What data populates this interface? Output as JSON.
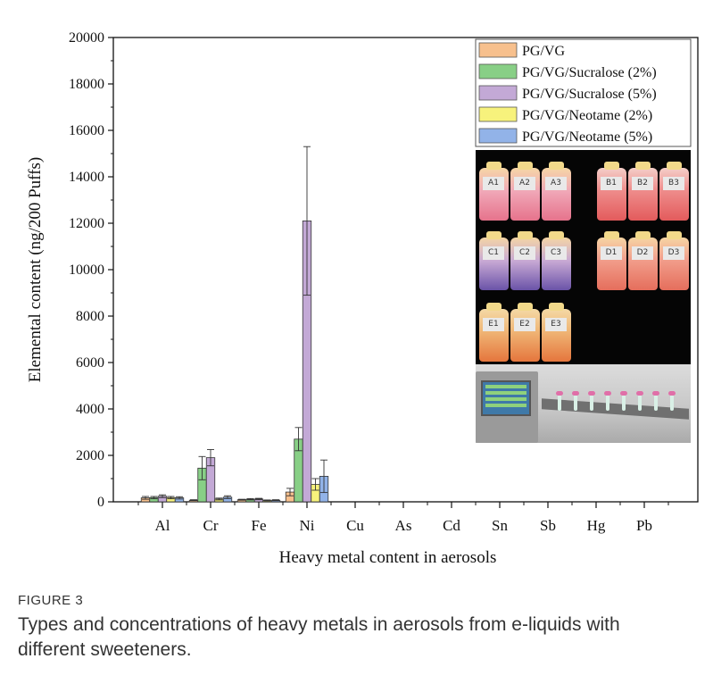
{
  "chart_data": {
    "type": "bar",
    "xlabel": "Heavy metal content in aerosols",
    "ylabel": "Elemental content (ng/200 Puffs)",
    "ylim": [
      0,
      20000
    ],
    "yticks": [
      0,
      2000,
      4000,
      6000,
      8000,
      10000,
      12000,
      14000,
      16000,
      18000,
      20000
    ],
    "categories": [
      "Al",
      "Cr",
      "Fe",
      "Ni",
      "Cu",
      "As",
      "Cd",
      "Sn",
      "Sb",
      "Hg",
      "Pb"
    ],
    "legend_position": "top-right",
    "grid": false,
    "error_bars": true,
    "series": [
      {
        "name": "PG/VG",
        "color": "#f7c08d",
        "values": [
          170,
          70,
          90,
          420,
          0,
          0,
          0,
          0,
          0,
          0,
          0
        ],
        "errors": [
          60,
          20,
          20,
          160,
          0,
          0,
          0,
          0,
          0,
          0,
          0
        ]
      },
      {
        "name": "PG/VG/Sucralose (2%)",
        "color": "#88cf86",
        "values": [
          180,
          1450,
          110,
          2700,
          0,
          0,
          0,
          0,
          0,
          0,
          0
        ],
        "errors": [
          50,
          500,
          30,
          500,
          0,
          0,
          0,
          0,
          0,
          0,
          0
        ]
      },
      {
        "name": "PG/VG/Sucralose (5%)",
        "color": "#c3a9d6",
        "values": [
          240,
          1900,
          120,
          12100,
          0,
          0,
          0,
          0,
          0,
          0,
          0
        ],
        "errors": [
          60,
          350,
          30,
          3200,
          0,
          0,
          0,
          0,
          0,
          0,
          0
        ]
      },
      {
        "name": "PG/VG/Neotame (2%)",
        "color": "#f7f27c",
        "values": [
          180,
          120,
          60,
          750,
          0,
          0,
          0,
          0,
          0,
          0,
          0
        ],
        "errors": [
          50,
          40,
          20,
          250,
          0,
          0,
          0,
          0,
          0,
          0,
          0
        ]
      },
      {
        "name": "PG/VG/Neotame (5%)",
        "color": "#92b3e8",
        "values": [
          170,
          200,
          70,
          1100,
          0,
          0,
          0,
          0,
          0,
          0,
          0
        ],
        "errors": [
          50,
          60,
          20,
          700,
          0,
          0,
          0,
          0,
          0,
          0,
          0
        ]
      }
    ]
  },
  "photo_labels": [
    "A1",
    "A2",
    "A3",
    "B1",
    "B2",
    "B3",
    "C1",
    "C2",
    "C3",
    "D1",
    "D2",
    "D3",
    "E1",
    "E2",
    "E3"
  ],
  "caption": {
    "label": "FIGURE 3",
    "text": "Types and concentrations of heavy metals in aerosols from e-liquids with different sweeteners."
  }
}
